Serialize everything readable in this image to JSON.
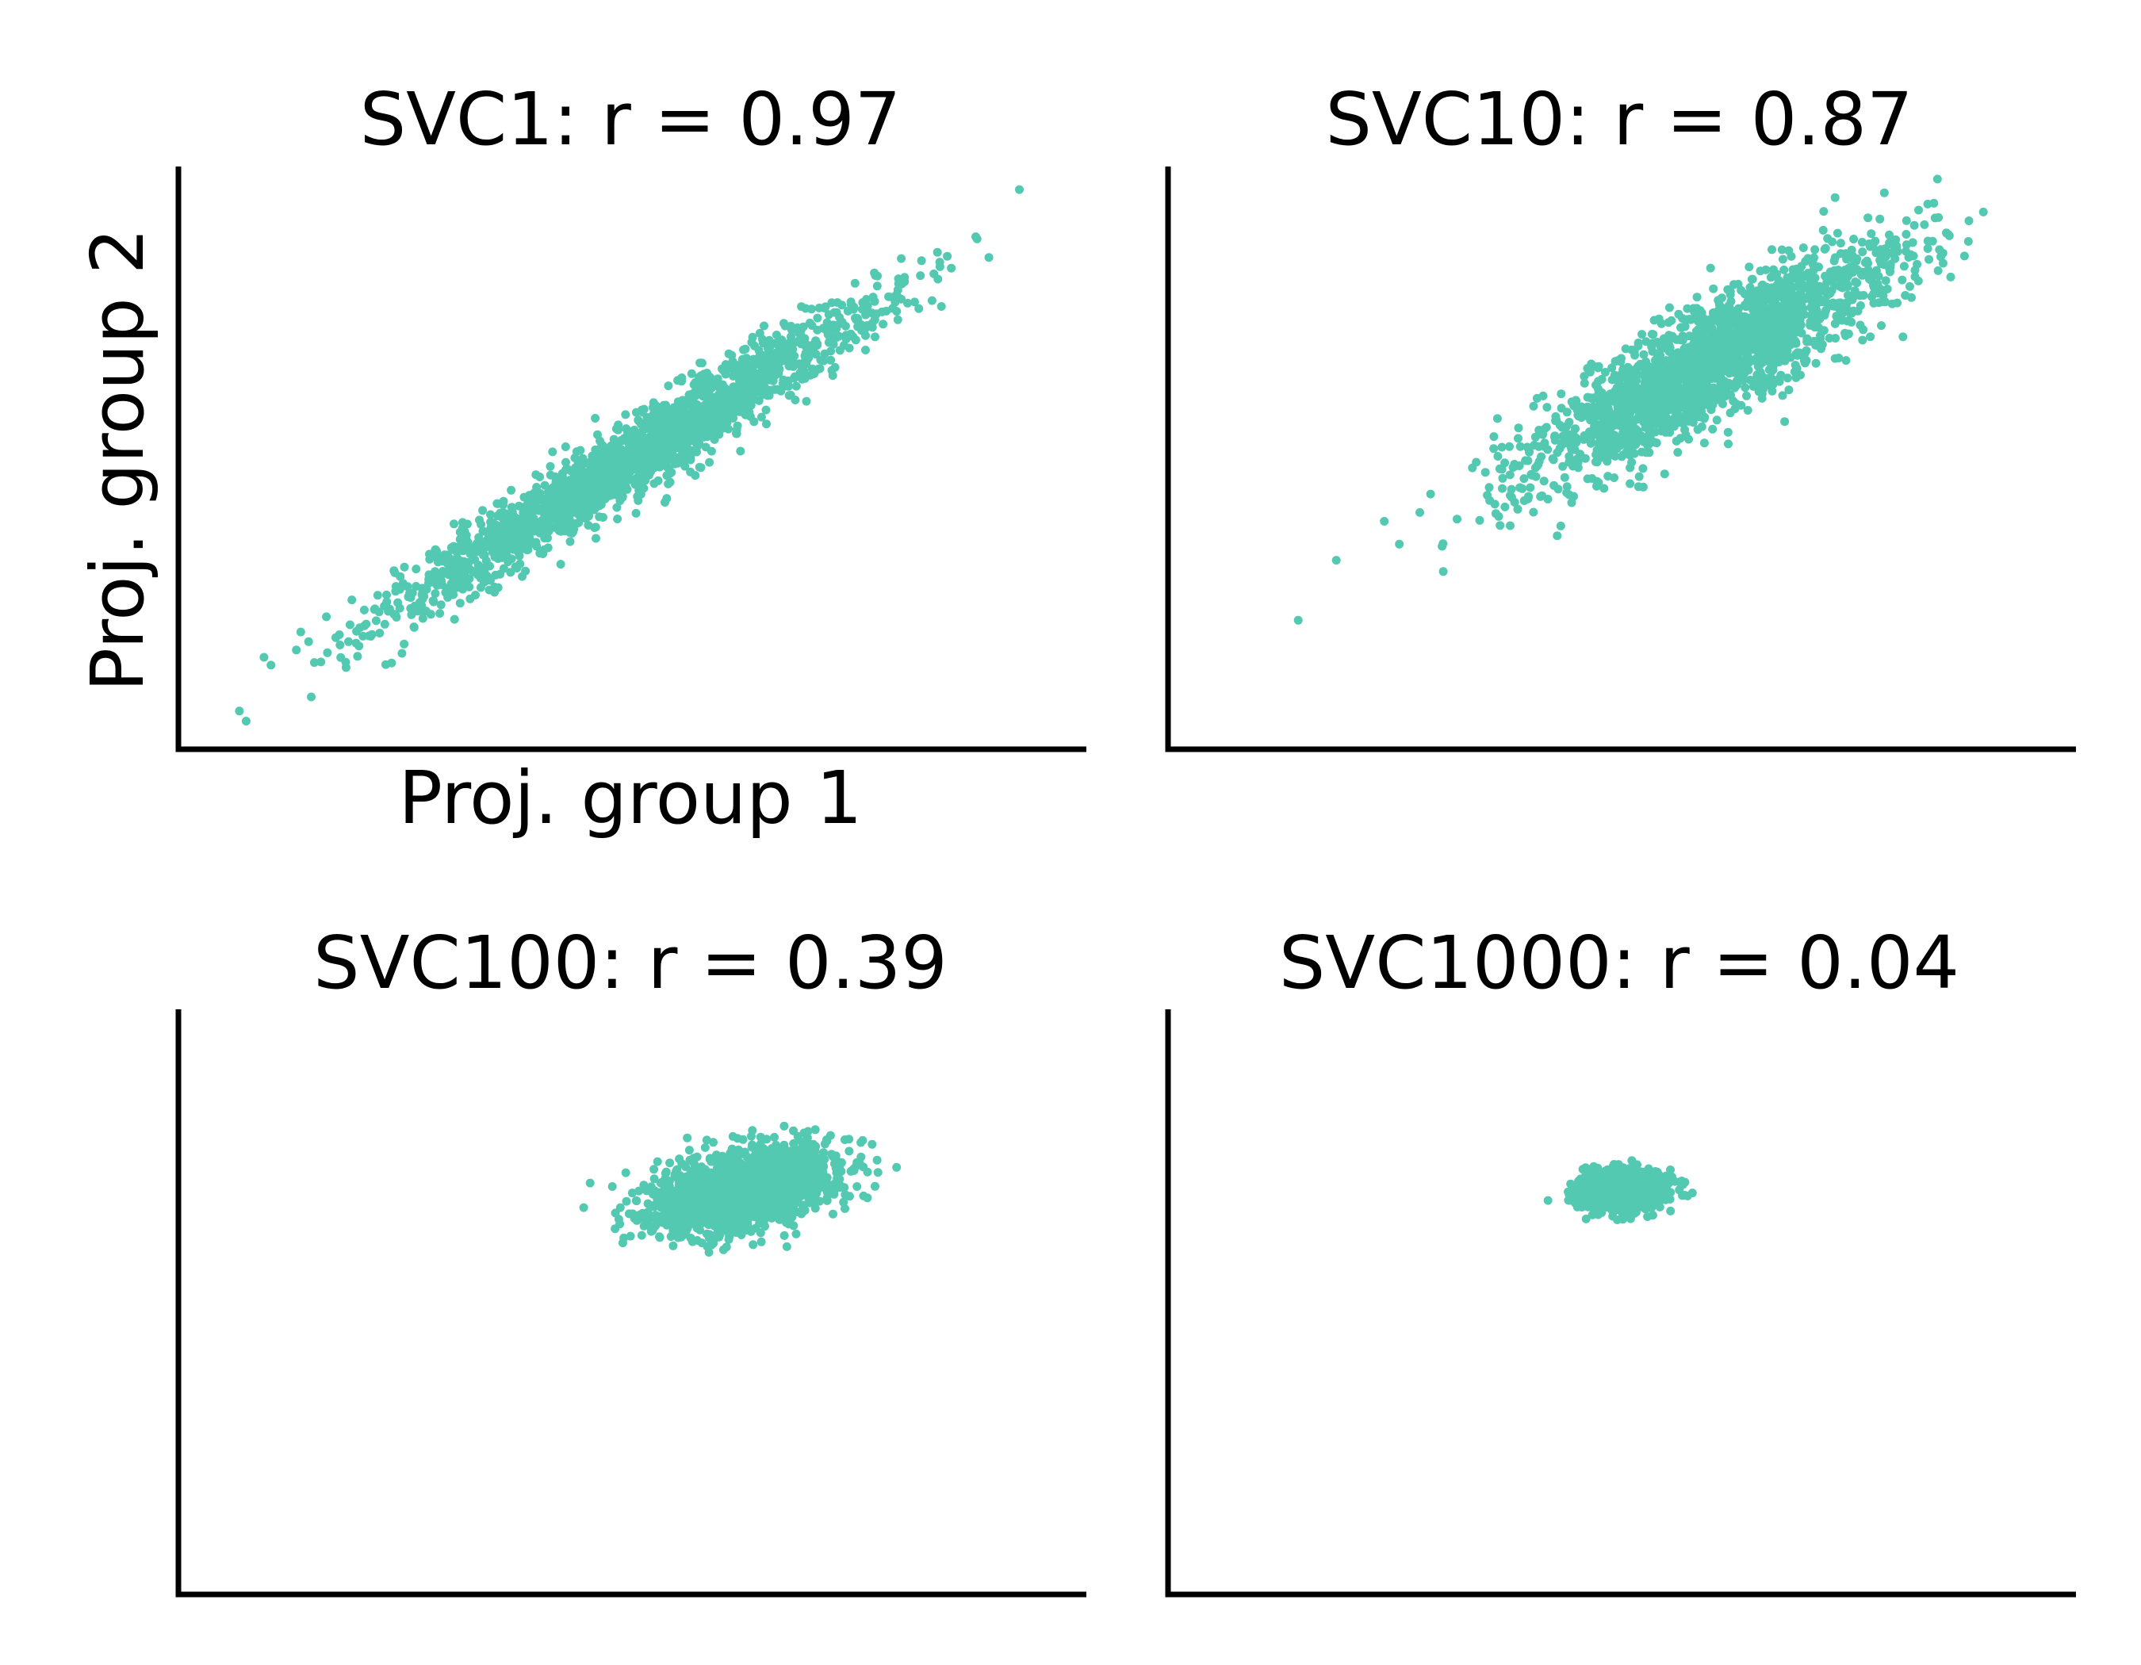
{
  "chart_data": [
    {
      "type": "scatter",
      "title": "SVC1: r = 0.97",
      "xlabel": "Proj. group 1",
      "ylabel": "Proj. group 2",
      "xlim": [
        -4.6,
        4.6
      ],
      "ylim": [
        -4.6,
        4.6
      ],
      "ticks": false,
      "grid": false,
      "series": [
        {
          "color": "#52c9b0",
          "r": 0.97,
          "sd_x": 1.25,
          "sd_y": 1.25,
          "mean_x": 0.0,
          "mean_y": 0.0,
          "n_points": 2000
        }
      ]
    },
    {
      "type": "scatter",
      "title": "SVC10: r = 0.87",
      "xlabel": "",
      "ylabel": "",
      "xlim": [
        -4.6,
        4.6
      ],
      "ylim": [
        -4.6,
        4.6
      ],
      "ticks": false,
      "grid": false,
      "series": [
        {
          "color": "#52c9b0",
          "r": 0.87,
          "sd_x": 0.95,
          "sd_y": 0.95,
          "mean_x": 0.9,
          "mean_y": 1.5,
          "n_points": 2000
        }
      ]
    },
    {
      "type": "scatter",
      "title": "SVC100: r = 0.39",
      "xlabel": "",
      "ylabel": "",
      "xlim": [
        -4.6,
        4.6
      ],
      "ylim": [
        -4.6,
        4.6
      ],
      "ticks": false,
      "grid": false,
      "series": [
        {
          "color": "#52c9b0",
          "r": 0.39,
          "sd_x": 0.47,
          "sd_y": 0.33,
          "mean_x": 1.1,
          "mean_y": 1.75,
          "n_points": 2000
        }
      ]
    },
    {
      "type": "scatter",
      "title": "SVC1000: r = 0.04",
      "xlabel": "",
      "ylabel": "",
      "xlim": [
        -4.6,
        4.6
      ],
      "ylim": [
        -4.6,
        4.6
      ],
      "ticks": false,
      "grid": false,
      "series": [
        {
          "color": "#52c9b0",
          "r": 0.04,
          "sd_x": 0.2,
          "sd_y": 0.14,
          "mean_x": 0.0,
          "mean_y": 1.75,
          "n_points": 2000
        }
      ]
    }
  ]
}
